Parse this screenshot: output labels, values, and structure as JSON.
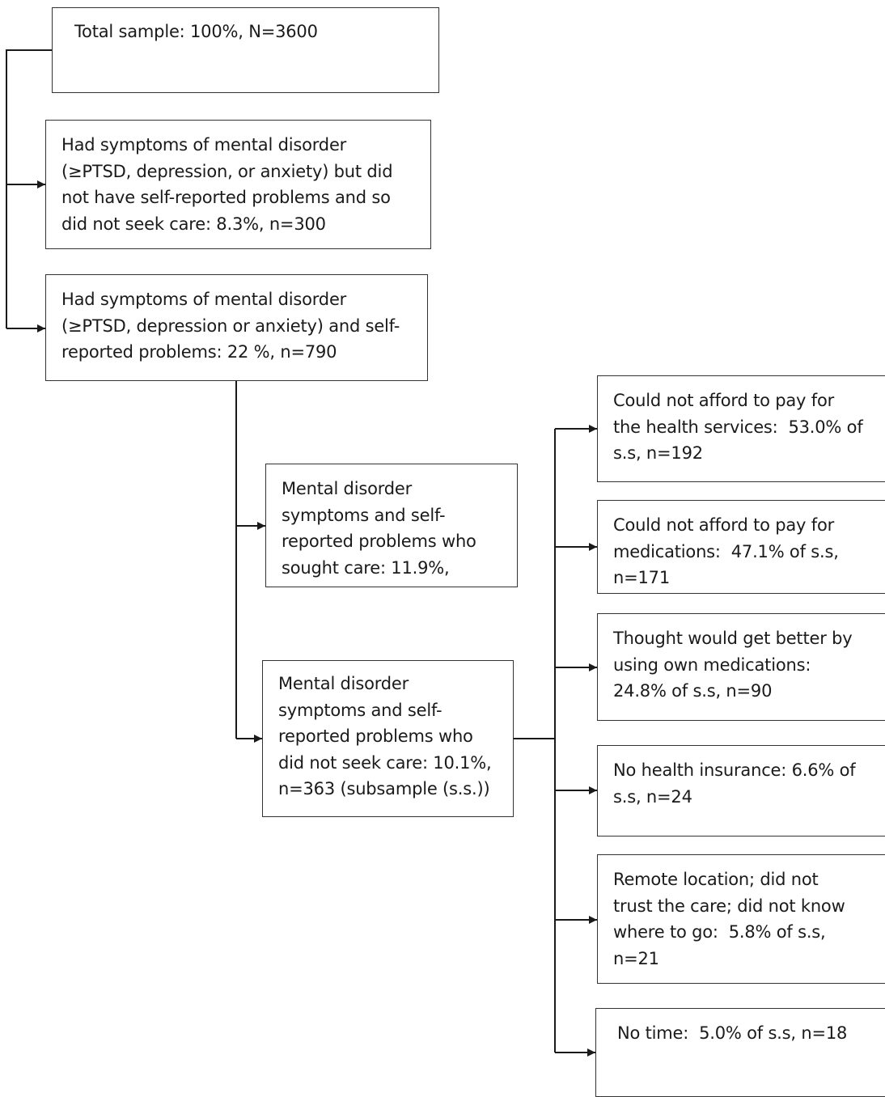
{
  "flowchart": {
    "nodes": {
      "total_sample": {
        "lines": [
          "Total sample: 100%, N=3600"
        ]
      },
      "symptoms_no_problems": {
        "lines": [
          "Had symptoms of mental disorder",
          "(≥PTSD, depression, or anxiety) but did",
          "not have self-reported problems and so",
          "did not seek care: 8.3%, n=300"
        ]
      },
      "symptoms_and_problems": {
        "lines": [
          "Had symptoms of mental disorder",
          "(≥PTSD, depression or anxiety) and self-",
          "reported problems: 22 %, n=790"
        ]
      },
      "sought_care": {
        "lines": [
          "Mental disorder",
          "symptoms and self-",
          "reported problems who",
          "sought care: 11.9%,"
        ]
      },
      "did_not_seek_care": {
        "lines": [
          "Mental disorder",
          "symptoms and self-",
          "reported problems who",
          "did not seek care: 10.1%,",
          "n=363 (subsample (s.s.))"
        ]
      },
      "reason_afford_services": {
        "lines": [
          "Could not afford to pay for",
          "the health services:  53.0% of",
          "s.s, n=192"
        ]
      },
      "reason_afford_medications": {
        "lines": [
          "Could not afford to pay for",
          "medications:  47.1% of s.s,",
          "n=171"
        ]
      },
      "reason_own_medications": {
        "lines": [
          "Thought would get better by",
          "using own medications:",
          "24.8% of s.s, n=90"
        ]
      },
      "reason_no_insurance": {
        "lines": [
          "No health insurance: 6.6% of",
          "s.s, n=24"
        ]
      },
      "reason_remote_trust": {
        "lines": [
          "Remote location; did not",
          "trust the care; did not know",
          "where to go:  5.8% of s.s,",
          "n=21"
        ]
      },
      "reason_no_time": {
        "lines": [
          "No time:  5.0% of s.s, n=18"
        ]
      }
    }
  }
}
